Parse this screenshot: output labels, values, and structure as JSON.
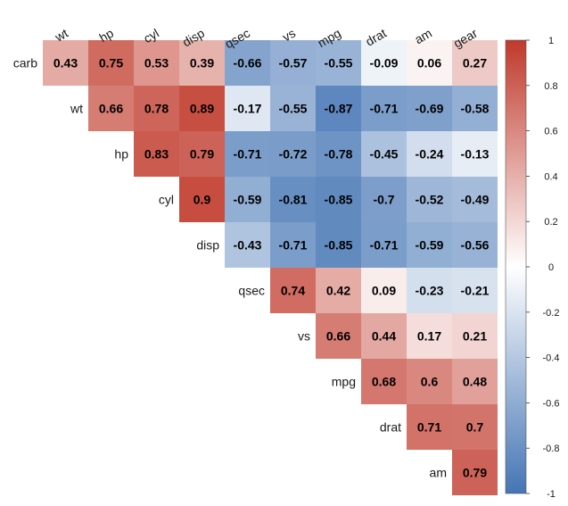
{
  "chart_data": {
    "type": "heatmap",
    "title": "",
    "column_labels": [
      "wt",
      "hp",
      "cyl",
      "disp",
      "qsec",
      "vs",
      "mpg",
      "drat",
      "am",
      "gear"
    ],
    "row_labels": [
      "carb",
      "wt",
      "hp",
      "cyl",
      "disp",
      "qsec",
      "vs",
      "mpg",
      "drat",
      "am"
    ],
    "values": [
      [
        0.43,
        0.75,
        0.53,
        0.39,
        -0.66,
        -0.57,
        -0.55,
        -0.09,
        0.06,
        0.27
      ],
      [
        null,
        0.66,
        0.78,
        0.89,
        -0.17,
        -0.55,
        -0.87,
        -0.71,
        -0.69,
        -0.58
      ],
      [
        null,
        null,
        0.83,
        0.79,
        -0.71,
        -0.72,
        -0.78,
        -0.45,
        -0.24,
        -0.13
      ],
      [
        null,
        null,
        null,
        0.9,
        -0.59,
        -0.81,
        -0.85,
        -0.7,
        -0.52,
        -0.49
      ],
      [
        null,
        null,
        null,
        null,
        -0.43,
        -0.71,
        -0.85,
        -0.71,
        -0.59,
        -0.56
      ],
      [
        null,
        null,
        null,
        null,
        null,
        0.74,
        0.42,
        0.09,
        -0.23,
        -0.21
      ],
      [
        null,
        null,
        null,
        null,
        null,
        null,
        0.66,
        0.44,
        0.17,
        0.21
      ],
      [
        null,
        null,
        null,
        null,
        null,
        null,
        null,
        0.68,
        0.6,
        0.48
      ],
      [
        null,
        null,
        null,
        null,
        null,
        null,
        null,
        null,
        0.71,
        0.7
      ],
      [
        null,
        null,
        null,
        null,
        null,
        null,
        null,
        null,
        null,
        0.79
      ]
    ],
    "value_labels": [
      [
        "0.43",
        "0.75",
        "0.53",
        "0.39",
        "-0.66",
        "-0.57",
        "-0.55",
        "-0.09",
        "0.06",
        "0.27"
      ],
      [
        "",
        "0.66",
        "0.78",
        "0.89",
        "-0.17",
        "-0.55",
        "-0.87",
        "-0.71",
        "-0.69",
        "-0.58"
      ],
      [
        "",
        "",
        "0.83",
        "0.79",
        "-0.71",
        "-0.72",
        "-0.78",
        "-0.45",
        "-0.24",
        "-0.13"
      ],
      [
        "",
        "",
        "",
        "0.9",
        "-0.59",
        "-0.81",
        "-0.85",
        "-0.7",
        "-0.52",
        "-0.49"
      ],
      [
        "",
        "",
        "",
        "",
        "-0.43",
        "-0.71",
        "-0.85",
        "-0.71",
        "-0.59",
        "-0.56"
      ],
      [
        "",
        "",
        "",
        "",
        "",
        "0.74",
        "0.42",
        "0.09",
        "-0.23",
        "-0.21"
      ],
      [
        "",
        "",
        "",
        "",
        "",
        "",
        "0.66",
        "0.44",
        "0.17",
        "0.21"
      ],
      [
        "",
        "",
        "",
        "",
        "",
        "",
        "",
        "0.68",
        "0.6",
        "0.48"
      ],
      [
        "",
        "",
        "",
        "",
        "",
        "",
        "",
        "",
        "0.71",
        "0.7"
      ],
      [
        "",
        "",
        "",
        "",
        "",
        "",
        "",
        "",
        "",
        "0.79"
      ]
    ],
    "color_scale": {
      "range": [
        -1,
        1
      ],
      "low_color": "#4575b4",
      "mid_color": "#ffffff",
      "high_color": "#c0392b",
      "ticks": [
        1,
        0.8,
        0.6,
        0.4,
        0.2,
        0,
        -0.2,
        -0.4,
        -0.6,
        -0.8,
        -1
      ],
      "tick_labels": [
        "1",
        "0.8",
        "0.6",
        "0.4",
        "0.2",
        "0",
        "-0.2",
        "-0.4",
        "-0.6",
        "-0.8",
        "-1"
      ]
    },
    "grid": false,
    "legend_placement": "right"
  }
}
